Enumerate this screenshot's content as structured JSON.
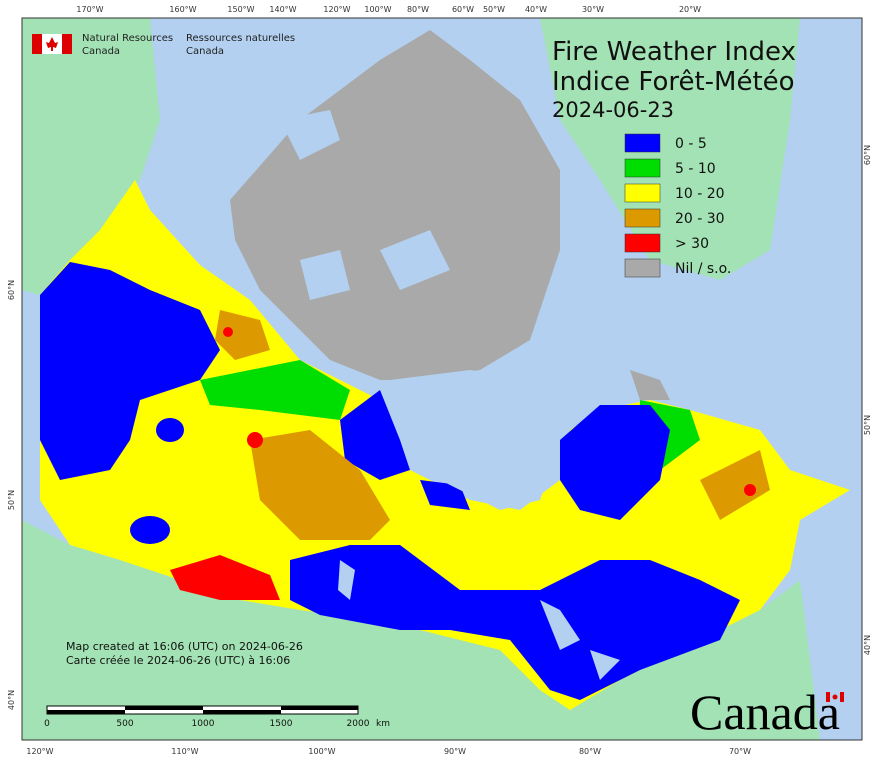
{
  "header": {
    "department_en": [
      "Natural Resources",
      "Canada"
    ],
    "department_fr": [
      "Ressources naturelles",
      "Canada"
    ]
  },
  "title": {
    "line1": "Fire Weather Index",
    "line2": "Indice Forêt-Météo",
    "date": "2024-06-23"
  },
  "legend": [
    {
      "label": "0 - 5",
      "color": "#0000ff"
    },
    {
      "label": "5 - 10",
      "color": "#00dd00"
    },
    {
      "label": "10 - 20",
      "color": "#ffff00"
    },
    {
      "label": "20 - 30",
      "color": "#dd9900"
    },
    {
      "label": "> 30",
      "color": "#ff0000"
    },
    {
      "label": "Nil / s.o.",
      "color": "#a9a9a9"
    }
  ],
  "graticule": {
    "top": [
      "170°W",
      "160°W",
      "150°W",
      "140°W",
      "120°W",
      "100°W",
      "80°W",
      "60°W",
      "50°W",
      "40°W",
      "30°W",
      "20°W"
    ],
    "bottom": [
      "120°W",
      "110°W",
      "100°W",
      "90°W",
      "80°W",
      "70°W"
    ],
    "left": [
      "60°N",
      "50°N",
      "40°N"
    ],
    "right": [
      "60°N",
      "50°N",
      "40°N"
    ]
  },
  "notes": [
    "Map created at 16:06 (UTC) on 2024-06-26",
    "Carte créée le 2024-06-26 (UTC) à 16:06"
  ],
  "scale_bar": [
    "0",
    "500",
    "1000",
    "1500",
    "2000",
    "km"
  ],
  "wordmark": "Canada"
}
